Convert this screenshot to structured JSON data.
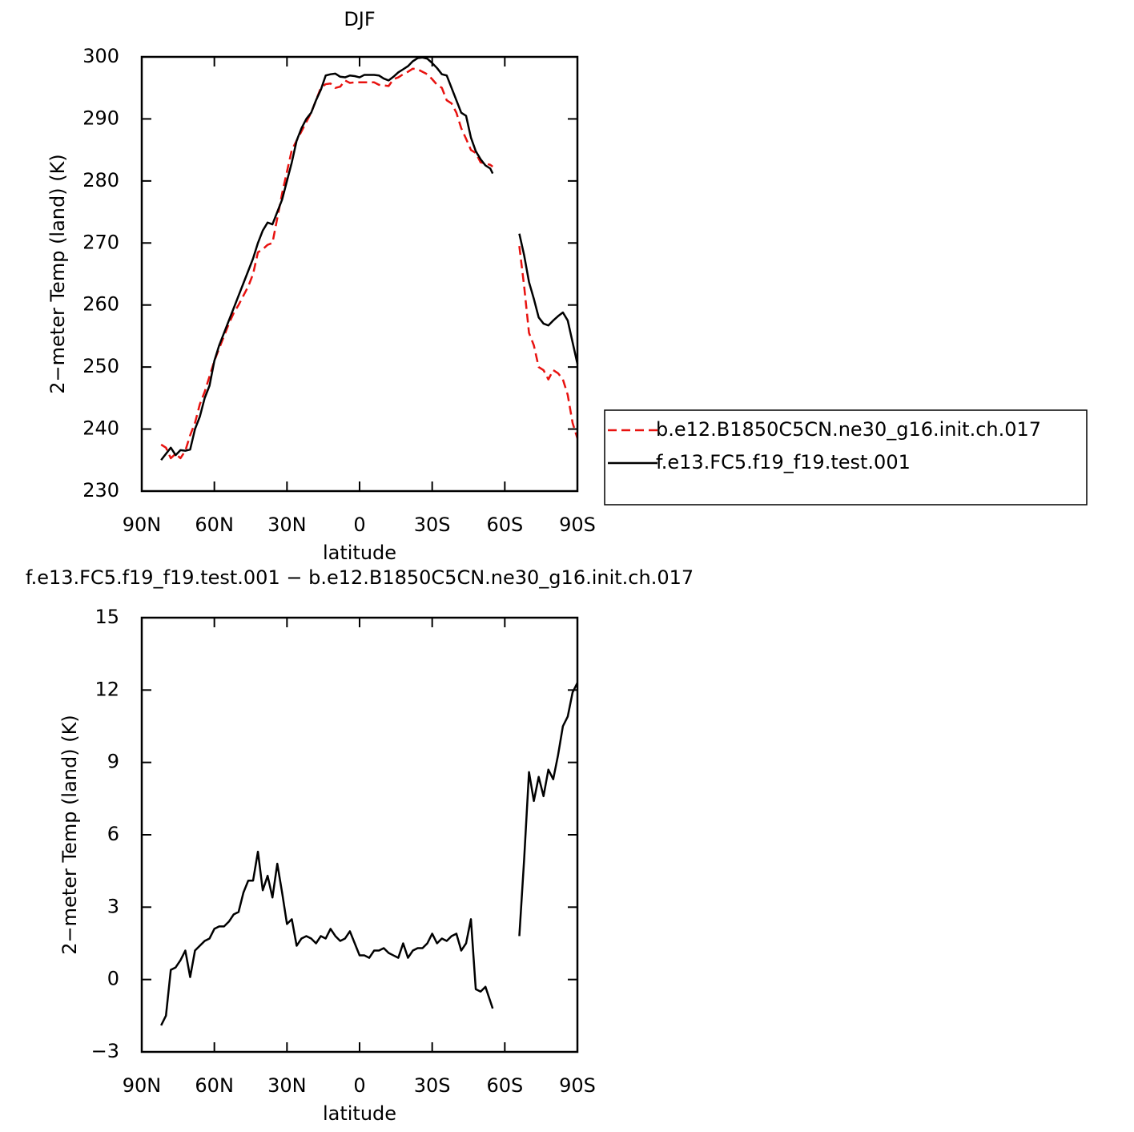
{
  "chart_data": [
    {
      "type": "line",
      "title": "DJF",
      "x_label": "latitude",
      "y_label": "2−meter Temp (land) (K)",
      "xlim": [
        90,
        -90
      ],
      "xticks": [
        {
          "value": 90,
          "label": "90N"
        },
        {
          "value": 60,
          "label": "60N"
        },
        {
          "value": 30,
          "label": "30N"
        },
        0,
        {
          "value": -30,
          "label": "30S"
        },
        {
          "value": -60,
          "label": "60S"
        },
        {
          "value": -90,
          "label": "90S"
        }
      ],
      "ylim": [
        230,
        300
      ],
      "yticks": [
        230,
        240,
        250,
        260,
        270,
        280,
        290,
        300
      ],
      "legend": "right",
      "x": [
        82,
        80,
        78,
        76,
        74,
        72,
        70,
        68,
        66,
        64,
        62,
        60,
        58,
        56,
        54,
        52,
        50,
        48,
        46,
        44,
        42,
        40,
        38,
        36,
        34,
        32,
        30,
        28,
        26,
        24,
        22,
        20,
        18,
        16,
        14,
        12,
        10,
        8,
        6,
        4,
        2,
        0,
        -2,
        -4,
        -6,
        -8,
        -10,
        -12,
        -14,
        -16,
        -18,
        -20,
        -22,
        -24,
        -26,
        -28,
        -30,
        -32,
        -34,
        -36,
        -38,
        -40,
        -42,
        -44,
        -46,
        -48,
        -50,
        -52,
        -54,
        -55,
        -60,
        -66,
        -68,
        -70,
        -72,
        -74,
        -76,
        -78,
        -80,
        -82,
        -84,
        -86,
        -88,
        -90
      ],
      "series": [
        {
          "name": "b.e12.B1850C5CN.ne30_g16.init.ch.017",
          "color": "#e8120f",
          "dash": true,
          "values": [
            237.5,
            237,
            235.3,
            236,
            235.3,
            236.5,
            239,
            241,
            244,
            246,
            248.5,
            251,
            253,
            255,
            257,
            258.7,
            260,
            261.5,
            263,
            265,
            268.5,
            269,
            269.7,
            270,
            274,
            278,
            281.5,
            285,
            286.5,
            288,
            289.5,
            291,
            293,
            295,
            295.6,
            295.7,
            295,
            295.2,
            296.2,
            295.8,
            295.9,
            295.9,
            295.9,
            295.9,
            295.9,
            295.5,
            295.4,
            295.3,
            296.4,
            296.7,
            297.2,
            297.6,
            298.1,
            298,
            297.6,
            297.2,
            296.4,
            295.5,
            295,
            293,
            292.5,
            291,
            288.5,
            286.8,
            285,
            284.5,
            283,
            282.8,
            282.6,
            282.3,
            null,
            269.5,
            263,
            255.5,
            253.5,
            250,
            249.5,
            248,
            249.5,
            249,
            248,
            245.5,
            241,
            238.5
          ]
        },
        {
          "name": "f.e13.FC5.f19_f19.test.001",
          "color": "#000000",
          "dash": false,
          "values": [
            235,
            236,
            237,
            235.8,
            236.6,
            236.5,
            236.7,
            240,
            242,
            245,
            247,
            251,
            253.5,
            255.5,
            257.5,
            259.5,
            261.5,
            263.5,
            265.5,
            267.5,
            270,
            272,
            273.3,
            273,
            275,
            277,
            280,
            283,
            286.5,
            288.5,
            290,
            291,
            293,
            294.7,
            297,
            297.2,
            297.3,
            296.8,
            296.7,
            297,
            296.9,
            296.7,
            297.1,
            297.1,
            297.1,
            297,
            296.5,
            296.2,
            296.8,
            297.5,
            298,
            298.5,
            299.3,
            299.8,
            299.9,
            299.7,
            299,
            298.2,
            297.2,
            297,
            295,
            293,
            291,
            290.5,
            287,
            284.8,
            283.5,
            282.5,
            282,
            281.2,
            null,
            271.5,
            268,
            263.7,
            261,
            258,
            257,
            256.7,
            257.5,
            258.2,
            258.8,
            257.5,
            254,
            250.5
          ]
        }
      ]
    },
    {
      "type": "line",
      "title": "f.e13.FC5.f19_f19.test.001 − b.e12.B1850C5CN.ne30_g16.init.ch.017",
      "x_label": "latitude",
      "y_label": "2−meter Temp (land) (K)",
      "xlim": [
        90,
        -90
      ],
      "xticks": [
        {
          "value": 90,
          "label": "90N"
        },
        {
          "value": 60,
          "label": "60N"
        },
        {
          "value": 30,
          "label": "30N"
        },
        0,
        {
          "value": -30,
          "label": "30S"
        },
        {
          "value": -60,
          "label": "60S"
        },
        {
          "value": -90,
          "label": "90S"
        }
      ],
      "ylim": [
        -3,
        15
      ],
      "yticks": [
        {
          "value": -3,
          "label": "−3"
        },
        0,
        3,
        6,
        9,
        12,
        15
      ],
      "x": [
        82,
        80,
        78,
        76,
        74,
        72,
        70,
        68,
        66,
        64,
        62,
        60,
        58,
        56,
        54,
        52,
        50,
        48,
        46,
        44,
        42,
        40,
        38,
        36,
        34,
        32,
        30,
        28,
        26,
        24,
        22,
        20,
        18,
        16,
        14,
        12,
        10,
        8,
        6,
        4,
        2,
        0,
        -2,
        -4,
        -6,
        -8,
        -10,
        -12,
        -14,
        -16,
        -18,
        -20,
        -22,
        -24,
        -26,
        -28,
        -30,
        -32,
        -34,
        -36,
        -38,
        -40,
        -42,
        -44,
        -46,
        -48,
        -50,
        -52,
        -54,
        -55,
        -60,
        -66,
        -68,
        -70,
        -72,
        -74,
        -76,
        -78,
        -80,
        -82,
        -84,
        -86,
        -88,
        -90
      ],
      "series": [
        {
          "color": "#000000",
          "dash": false,
          "values": [
            -1.9,
            -1.5,
            0.4,
            0.5,
            0.8,
            1.2,
            0.1,
            1.2,
            1.4,
            1.6,
            1.7,
            2.1,
            2.2,
            2.2,
            2.4,
            2.7,
            2.8,
            3.6,
            4.1,
            4.1,
            5.3,
            3.7,
            4.3,
            3.4,
            4.8,
            3.6,
            2.3,
            2.5,
            1.4,
            1.7,
            1.8,
            1.7,
            1.5,
            1.8,
            1.7,
            2.1,
            1.8,
            1.6,
            1.7,
            2.0,
            1.5,
            1.0,
            1.0,
            0.9,
            1.2,
            1.2,
            1.3,
            1.1,
            1.0,
            0.9,
            1.5,
            0.9,
            1.2,
            1.3,
            1.3,
            1.5,
            1.9,
            1.5,
            1.7,
            1.6,
            1.8,
            1.9,
            1.2,
            1.5,
            2.5,
            -0.4,
            -0.5,
            -0.3,
            -0.9,
            -1.2,
            null,
            1.8,
            5,
            8.6,
            7.4,
            8.4,
            7.6,
            8.7,
            8.3,
            9.3,
            10.5,
            10.9,
            11.9,
            12.3
          ]
        }
      ]
    }
  ]
}
